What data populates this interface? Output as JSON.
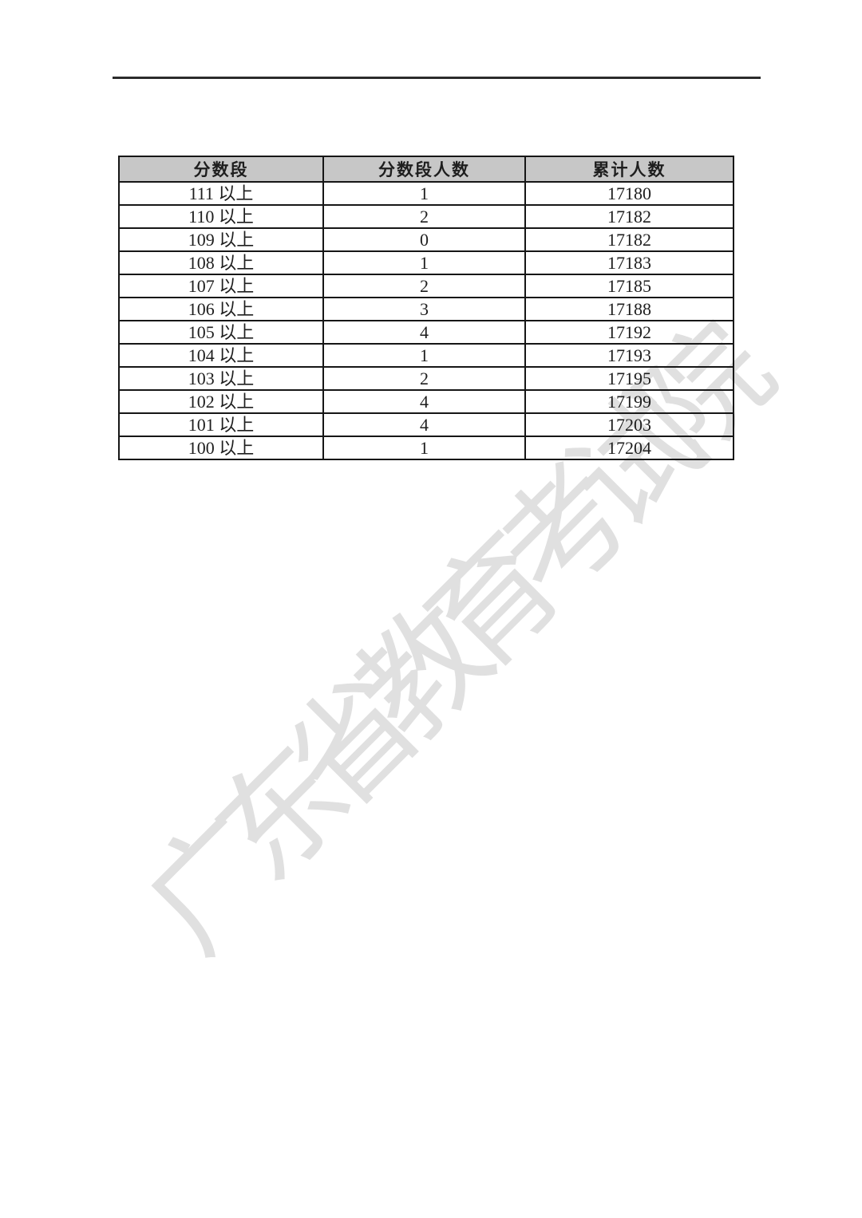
{
  "watermark": {
    "text": "广东省教育考试院",
    "color": "#e0e0e0"
  },
  "divider": {
    "color": "#2b2b2b"
  },
  "table": {
    "header_bg": "#c7c7c7",
    "border_color": "#161616",
    "headers": [
      "分数段",
      "分数段人数",
      "累计人数"
    ],
    "rows": [
      [
        "111 以上",
        "1",
        "17180"
      ],
      [
        "110 以上",
        "2",
        "17182"
      ],
      [
        "109 以上",
        "0",
        "17182"
      ],
      [
        "108 以上",
        "1",
        "17183"
      ],
      [
        "107 以上",
        "2",
        "17185"
      ],
      [
        "106 以上",
        "3",
        "17188"
      ],
      [
        "105 以上",
        "4",
        "17192"
      ],
      [
        "104 以上",
        "1",
        "17193"
      ],
      [
        "103 以上",
        "2",
        "17195"
      ],
      [
        "102 以上",
        "4",
        "17199"
      ],
      [
        "101 以上",
        "4",
        "17203"
      ],
      [
        "100 以上",
        "1",
        "17204"
      ]
    ]
  }
}
